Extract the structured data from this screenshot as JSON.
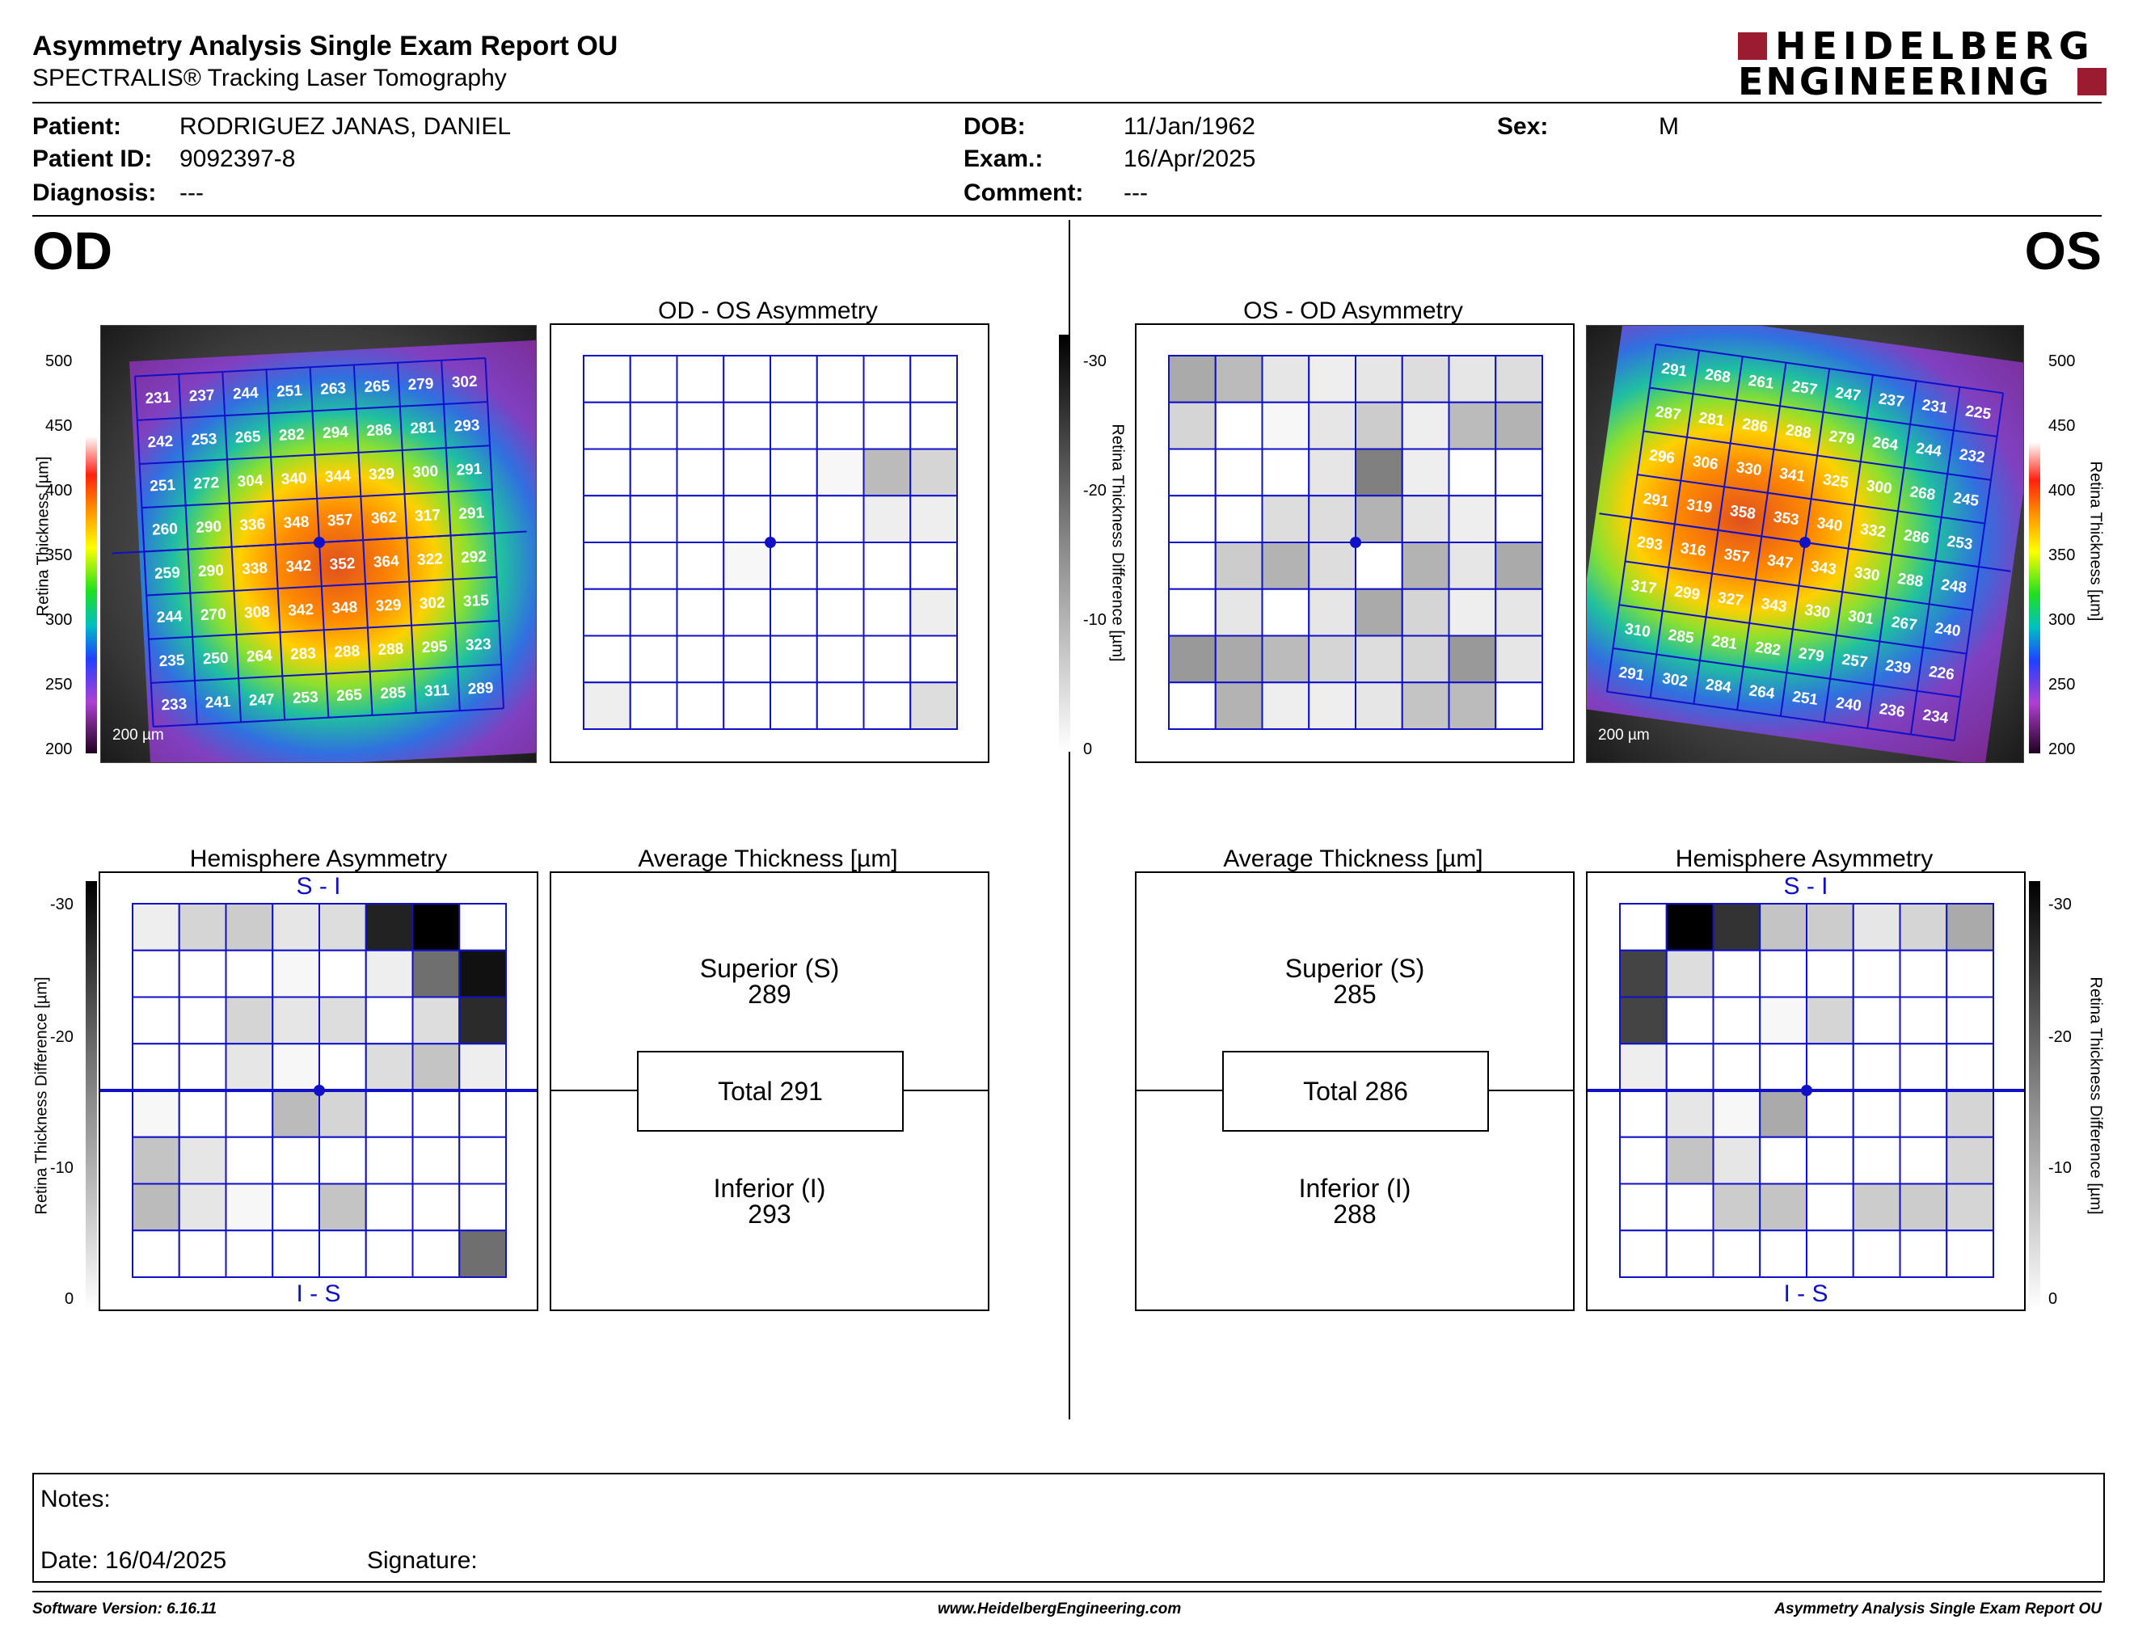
{
  "header": {
    "title": "Asymmetry Analysis Single Exam Report OU",
    "subtitle": "SPECTRALIS® Tracking Laser Tomography",
    "logo_line1": "HEIDELBERG",
    "logo_line2": "ENGINEERING"
  },
  "patient": {
    "patient_label": "Patient:",
    "patient_value": "RODRIGUEZ JANAS, DANIEL",
    "id_label": "Patient ID:",
    "id_value": "9092397-8",
    "diagnosis_label": "Diagnosis:",
    "diagnosis_value": "---",
    "dob_label": "DOB:",
    "dob_value": "11/Jan/1962",
    "exam_label": "Exam.:",
    "exam_value": "16/Apr/2025",
    "comment_label": "Comment:",
    "comment_value": "---",
    "sex_label": "Sex:",
    "sex_value": "M"
  },
  "od": {
    "eye_label": "OD",
    "asymmetry_title": "OD - OS Asymmetry",
    "hemisphere_title": "Hemisphere Asymmetry",
    "hemi_top": "S - I",
    "hemi_bottom": "I - S",
    "avg_title": "Average Thickness [µm]",
    "superior_label": "Superior (S)",
    "superior_value": "289",
    "total_label": "Total 291",
    "inferior_label": "Inferior (I)",
    "inferior_value": "293",
    "scale_label": "200 µm",
    "thickness_grid": [
      [
        231,
        237,
        244,
        251,
        263,
        265,
        279,
        302
      ],
      [
        242,
        253,
        265,
        282,
        294,
        286,
        281,
        293
      ],
      [
        251,
        272,
        304,
        340,
        344,
        329,
        300,
        291
      ],
      [
        260,
        290,
        336,
        348,
        357,
        362,
        317,
        291
      ],
      [
        259,
        290,
        338,
        342,
        352,
        364,
        322,
        292
      ],
      [
        244,
        270,
        308,
        342,
        348,
        329,
        302,
        315
      ],
      [
        235,
        250,
        264,
        283,
        288,
        288,
        295,
        323
      ],
      [
        233,
        241,
        247,
        253,
        265,
        285,
        311,
        289
      ]
    ],
    "asym_shades": [
      [
        0,
        0,
        0,
        0,
        0,
        0,
        0,
        0
      ],
      [
        0,
        0,
        0,
        0,
        0,
        0,
        0,
        0
      ],
      [
        0,
        0,
        0,
        0,
        0,
        1,
        8,
        5
      ],
      [
        0,
        0,
        0,
        0,
        0,
        0,
        2,
        2
      ],
      [
        0,
        0,
        0,
        1,
        0,
        0,
        0,
        0
      ],
      [
        0,
        0,
        0,
        0,
        0,
        0,
        0,
        2
      ],
      [
        0,
        0,
        0,
        0,
        0,
        0,
        0,
        0
      ],
      [
        2,
        0,
        0,
        0,
        0,
        0,
        0,
        4
      ]
    ],
    "hemi_shades": [
      [
        2,
        5,
        6,
        3,
        4,
        26,
        30,
        0
      ],
      [
        0,
        0,
        0,
        1,
        0,
        2,
        17,
        28
      ],
      [
        0,
        0,
        5,
        3,
        4,
        0,
        4,
        25
      ],
      [
        0,
        0,
        3,
        1,
        0,
        4,
        7,
        2
      ],
      [
        1,
        0,
        0,
        8,
        5,
        0,
        0,
        0
      ],
      [
        7,
        3,
        0,
        0,
        0,
        0,
        0,
        0
      ],
      [
        8,
        3,
        1,
        0,
        7,
        0,
        0,
        0
      ],
      [
        0,
        0,
        0,
        0,
        0,
        0,
        0,
        17
      ]
    ]
  },
  "os": {
    "eye_label": "OS",
    "asymmetry_title": "OS - OD Asymmetry",
    "hemisphere_title": "Hemisphere Asymmetry",
    "hemi_top": "S - I",
    "hemi_bottom": "I - S",
    "avg_title": "Average Thickness [µm]",
    "superior_label": "Superior (S)",
    "superior_value": "285",
    "total_label": "Total 286",
    "inferior_label": "Inferior (I)",
    "inferior_value": "288",
    "scale_label": "200 µm",
    "thickness_grid": [
      [
        291,
        268,
        261,
        257,
        247,
        237,
        231,
        225
      ],
      [
        287,
        281,
        286,
        288,
        279,
        264,
        244,
        232
      ],
      [
        296,
        306,
        330,
        341,
        325,
        300,
        268,
        245
      ],
      [
        291,
        319,
        358,
        353,
        340,
        332,
        286,
        253
      ],
      [
        293,
        316,
        357,
        347,
        343,
        330,
        288,
        248
      ],
      [
        317,
        299,
        327,
        343,
        330,
        301,
        267,
        240
      ],
      [
        310,
        285,
        281,
        282,
        279,
        257,
        239,
        226
      ],
      [
        291,
        302,
        284,
        264,
        251,
        240,
        236,
        234
      ]
    ],
    "asym_shades": [
      [
        10,
        8,
        3,
        2,
        3,
        4,
        3,
        4
      ],
      [
        5,
        0,
        1,
        3,
        6,
        2,
        8,
        9
      ],
      [
        0,
        0,
        0,
        3,
        15,
        2,
        0,
        0
      ],
      [
        0,
        0,
        4,
        4,
        9,
        3,
        2,
        0
      ],
      [
        0,
        6,
        9,
        4,
        0,
        9,
        3,
        10
      ],
      [
        0,
        3,
        0,
        3,
        10,
        5,
        2,
        3
      ],
      [
        12,
        10,
        8,
        5,
        4,
        5,
        12,
        3
      ],
      [
        0,
        9,
        2,
        2,
        3,
        7,
        8,
        0
      ]
    ],
    "hemi_shades": [
      [
        0,
        30,
        24,
        7,
        6,
        3,
        5,
        10
      ],
      [
        22,
        4,
        0,
        0,
        0,
        0,
        0,
        0
      ],
      [
        22,
        0,
        0,
        1,
        5,
        0,
        0,
        0
      ],
      [
        2,
        0,
        0,
        0,
        0,
        0,
        0,
        0
      ],
      [
        0,
        3,
        1,
        10,
        0,
        0,
        0,
        5
      ],
      [
        0,
        7,
        3,
        0,
        0,
        0,
        0,
        5
      ],
      [
        0,
        0,
        6,
        7,
        0,
        6,
        6,
        5
      ],
      [
        0,
        0,
        0,
        0,
        0,
        0,
        0,
        0
      ]
    ]
  },
  "thickness_scale": {
    "ticks": [
      "500",
      "450",
      "400",
      "350",
      "300",
      "250",
      "200"
    ],
    "axis_label": "Retina Thickness [µm]"
  },
  "difference_scale": {
    "ticks": [
      "-30",
      "-20",
      "-10",
      "0"
    ],
    "axis_label": "Retina Thickness Difference [µm]"
  },
  "notes": {
    "notes_label": "Notes:",
    "date_label": "Date: 16/04/2025",
    "signature_label": "Signature:"
  },
  "footer": {
    "software": "Software Version: 6.16.11",
    "website": "www.HeidelbergEngineering.com",
    "report": "Asymmetry Analysis Single Exam Report OU"
  },
  "colors": {
    "grid_blue": "#1010c8",
    "logo_red": "#9b1b30"
  }
}
